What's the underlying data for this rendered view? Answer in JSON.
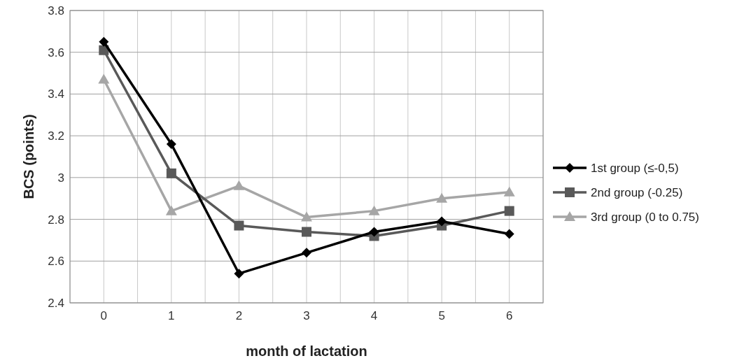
{
  "chart_data": {
    "type": "line",
    "xlabel": "month of lactation",
    "ylabel": "BCS (points)",
    "x": [
      0,
      1,
      2,
      3,
      4,
      5,
      6
    ],
    "xlim": [
      -0.5,
      6.5
    ],
    "xticks": [
      {
        "value": -0.5,
        "label": null
      },
      0,
      {
        "value": 0.5,
        "label": null
      },
      1,
      {
        "value": 1.5,
        "label": null
      },
      2,
      {
        "value": 2.5,
        "label": null
      },
      3,
      {
        "value": 3.5,
        "label": null
      },
      4,
      {
        "value": 4.5,
        "label": null
      },
      5,
      {
        "value": 5.5,
        "label": null
      },
      6,
      {
        "value": 6.5,
        "label": null
      }
    ],
    "ylim": [
      2.4,
      3.8
    ],
    "yticks": [
      {
        "value": 2.4,
        "label": "2.4"
      },
      {
        "value": 2.6,
        "label": "2.6"
      },
      {
        "value": 2.8,
        "label": "2.8"
      },
      {
        "value": 3,
        "label": "3"
      },
      {
        "value": 3.2,
        "label": "3.2"
      },
      {
        "value": 3.4,
        "label": "3.4"
      },
      {
        "value": 3.6,
        "label": "3.6"
      },
      {
        "value": 3.8,
        "label": "3.8"
      }
    ],
    "grid": true,
    "legend": "right",
    "series": [
      {
        "name": "1st group (≤-0,5)",
        "color": "#000000",
        "marker": "diamond",
        "values": [
          3.65,
          3.16,
          2.54,
          2.64,
          2.74,
          2.79,
          2.73
        ]
      },
      {
        "name": "2nd group (-0.25)",
        "color": "#595959",
        "marker": "square",
        "values": [
          3.61,
          3.02,
          2.77,
          2.74,
          2.72,
          2.77,
          2.84
        ]
      },
      {
        "name": "3rd group (0  to 0.75)",
        "color": "#a6a6a6",
        "marker": "triangle",
        "values": [
          3.47,
          2.84,
          2.96,
          2.81,
          2.84,
          2.9,
          2.93
        ]
      }
    ]
  }
}
